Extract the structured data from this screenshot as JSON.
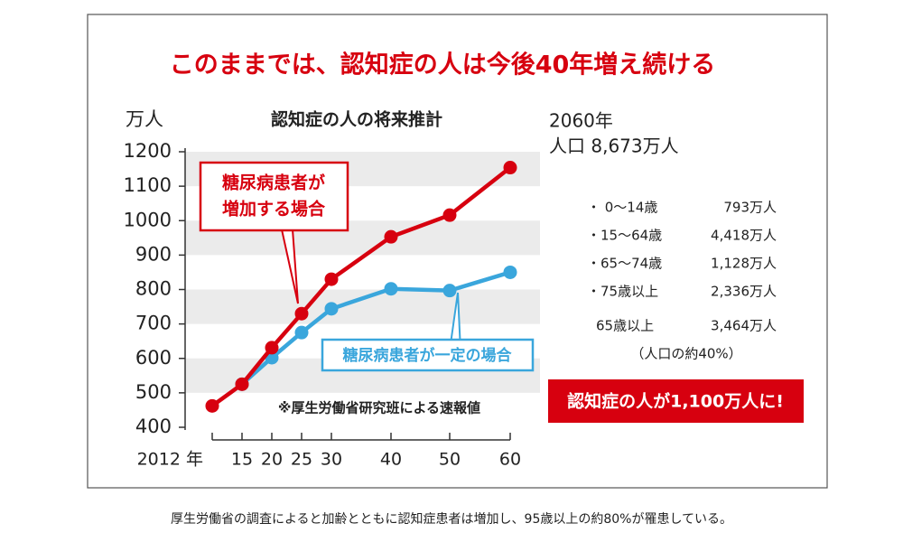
{
  "chart_data": {
    "type": "line",
    "title": "このままでは、認知症の人は今後40年増え続ける",
    "subtitle": "認知症の人の将来推計",
    "y_label": "万人",
    "note": "※厚生労働省研究班による速報値",
    "categories": [
      "2012 年",
      "15",
      "20",
      "25",
      "30",
      "40",
      "50",
      "60"
    ],
    "series": [
      {
        "name": "糖尿病患者が一定の場合",
        "color": "#3aa6dc",
        "values": [
          null,
          525,
          602,
          675,
          744,
          802,
          797,
          850
        ]
      },
      {
        "lines": [
          "糖尿病患者が",
          "増加する場合"
        ],
        "name": "糖尿病患者が増加する場合",
        "color": "#d7000f",
        "values": [
          462,
          525,
          631,
          730,
          830,
          953,
          1016,
          1154
        ]
      }
    ],
    "ylim": [
      400,
      1200
    ],
    "yticks": [
      400,
      500,
      600,
      700,
      800,
      900,
      1000,
      1100,
      1200
    ],
    "grid": "bands"
  },
  "panel": {
    "heading": [
      "2060年",
      "人口 8,673万人"
    ],
    "rows": [
      [
        "・  0～14歳",
        "793万人"
      ],
      [
        "・15～64歳",
        "4,418万人"
      ],
      [
        "・65～74歳",
        "1,128万人"
      ],
      [
        "・75歳以上",
        "2,336万人"
      ]
    ],
    "total": [
      "65歳以上",
      "3,464万人"
    ],
    "share": "（人口の約40%）",
    "banner": "認知症の人が1,100万人に!"
  },
  "caption": "厚生労働省の調査によると加齢とともに認知症患者は増加し、95歳以上の約80%が罹患している。"
}
